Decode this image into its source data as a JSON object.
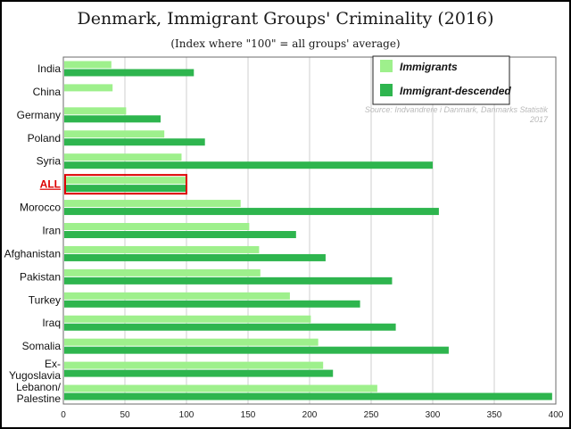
{
  "title": "Denmark, Immigrant Groups' Criminality (2016)",
  "subtitle": "(Index where \"100\" = all groups' average)",
  "source": "Source: Indvandrere i Danmark, Danmarks Statistik 2017",
  "colors": {
    "immigrants": "#9ef08c",
    "descended": "#2eb54e",
    "highlight": "#dd0000",
    "grid": "#cfcfcf"
  },
  "chart_data": {
    "type": "bar",
    "orientation": "horizontal",
    "title": "Denmark, Immigrant Groups' Criminality (2016)",
    "subtitle": "(Index where \"100\" = all groups' average)",
    "categories": [
      "India",
      "China",
      "Germany",
      "Poland",
      "Syria",
      "ALL",
      "Morocco",
      "Iran",
      "Afghanistan",
      "Pakistan",
      "Turkey",
      "Iraq",
      "Somalia",
      "Ex-Yugoslavia",
      "Lebanon/ Palestine"
    ],
    "highlight_category": "ALL",
    "series": [
      {
        "name": "Immigrants",
        "values": [
          39,
          40,
          51,
          82,
          96,
          100,
          144,
          151,
          159,
          160,
          184,
          201,
          207,
          211,
          255
        ]
      },
      {
        "name": "Immigrant-descended",
        "values": [
          106,
          null,
          79,
          115,
          300,
          100,
          305,
          189,
          213,
          267,
          241,
          270,
          313,
          219,
          397
        ]
      }
    ],
    "xlim": [
      0,
      400
    ],
    "xticks": [
      0,
      50,
      100,
      150,
      200,
      250,
      300,
      350,
      400
    ],
    "grid": true,
    "legend_position": "top-right"
  }
}
